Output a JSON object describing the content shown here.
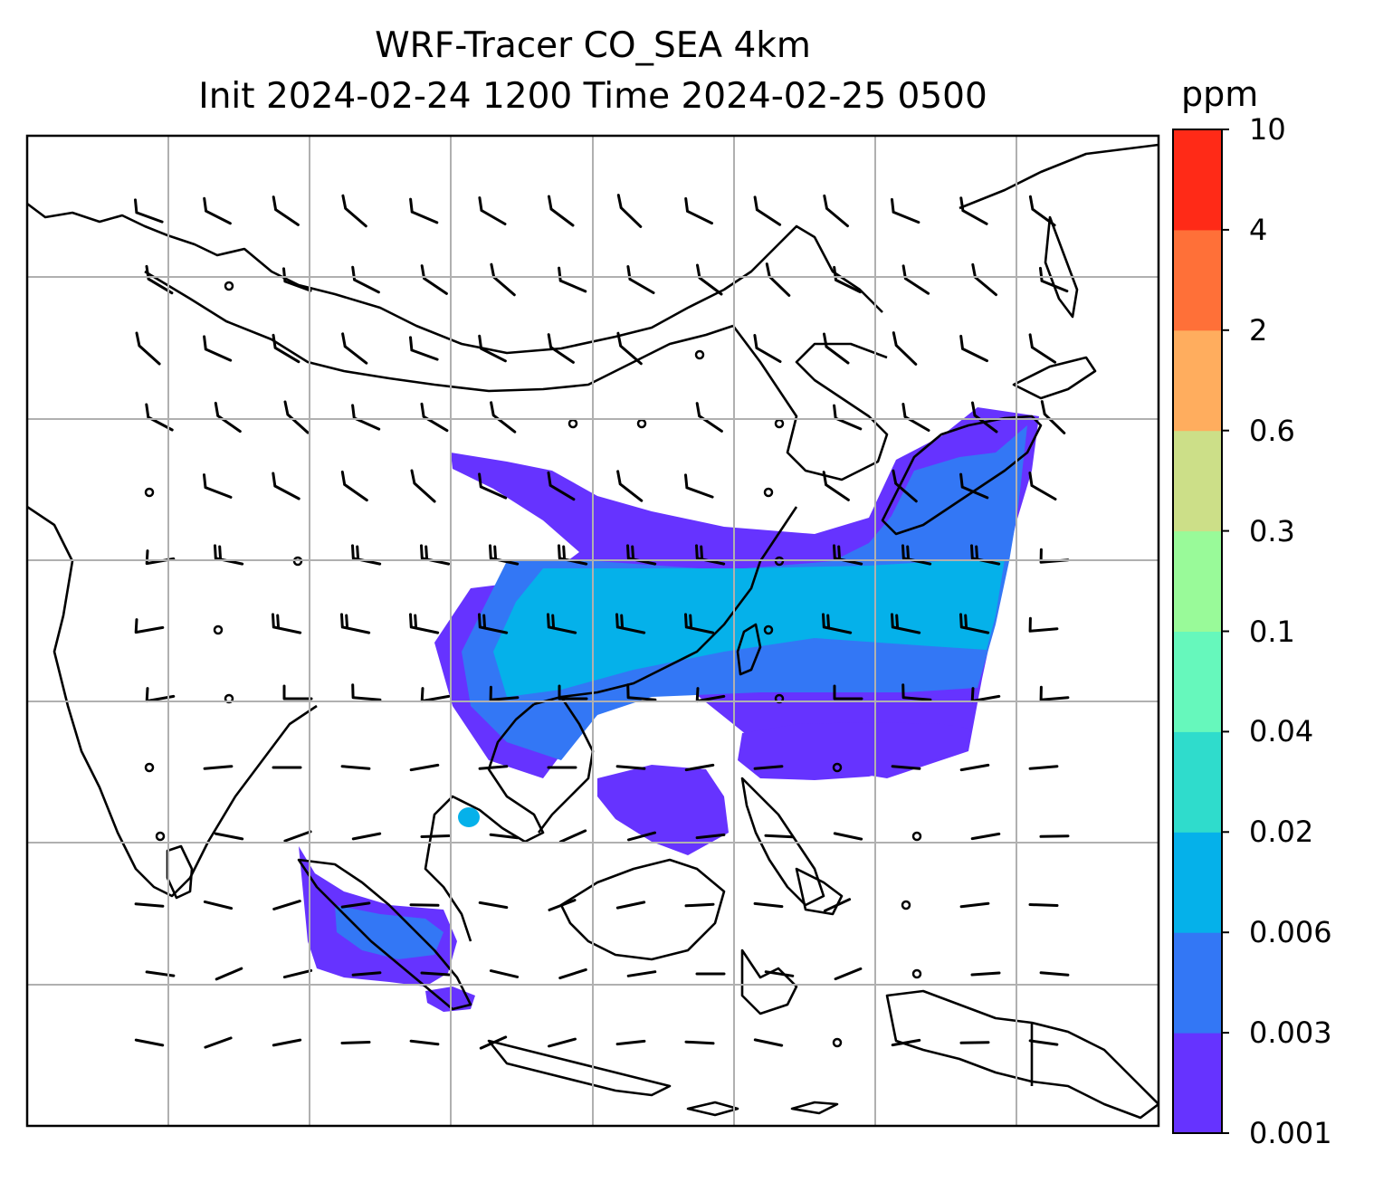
{
  "title": {
    "line1": "WRF-Tracer CO_SEA 4km",
    "line2": "Init 2024-02-24 1200 Time 2024-02-25 0500"
  },
  "colorbar": {
    "unit": "ppm",
    "ticks": [
      "0.001",
      "0.003",
      "0.006",
      "0.02",
      "0.04",
      "0.1",
      "0.3",
      "0.6",
      "2",
      "4",
      "10"
    ],
    "colors": [
      "#6633ff",
      "#3377f5",
      "#05b1ea",
      "#2fdccc",
      "#66f8bc",
      "#99fa99",
      "#ccdf88",
      "#ffad5e",
      "#ff7038",
      "#ff2a17"
    ]
  },
  "map": {
    "gridlines": "on",
    "grid_color": "#b0b0b0",
    "coastline_color": "#000000",
    "features": [
      "coastlines",
      "country borders",
      "wind barbs",
      "CO tracer concentration"
    ]
  }
}
